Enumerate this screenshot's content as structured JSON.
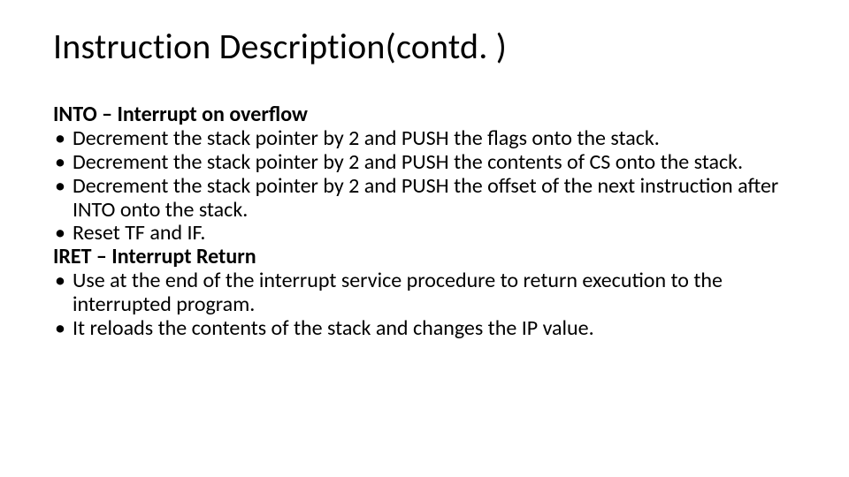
{
  "title": "Instruction Description(contd. )",
  "title_fontsize": 40,
  "body_fontsize": 24,
  "text_color": "#000000",
  "background_color": "#ffffff",
  "sections": [
    {
      "heading": "INTO – Interrupt on overflow",
      "bullets": [
        "Decrement the stack pointer by 2 and PUSH the flags onto the stack.",
        "Decrement the stack pointer by 2 and PUSH the contents of CS onto the stack.",
        "Decrement the stack pointer by 2 and PUSH the offset of the next instruction after INTO onto the stack.",
        "Reset TF and IF."
      ]
    },
    {
      "heading": "IRET – Interrupt Return",
      "bullets": [
        "Use at the end of the interrupt service procedure to return execution to the interrupted program.",
        "It reloads the contents of the stack and changes the IP value."
      ]
    }
  ]
}
